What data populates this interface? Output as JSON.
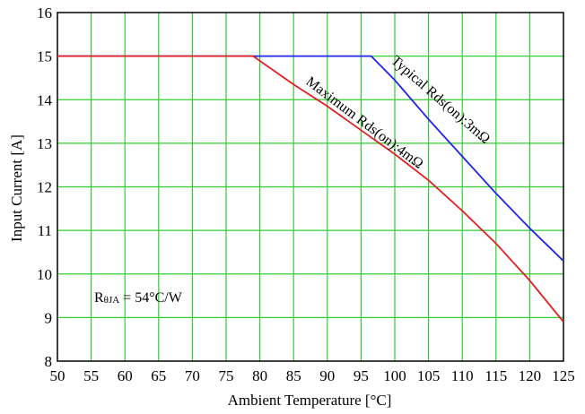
{
  "chart_data": {
    "type": "line",
    "xlabel": "Ambient Temperature [°C]",
    "ylabel": "Input Current [A]",
    "xlim": [
      50,
      125
    ],
    "ylim": [
      8,
      16
    ],
    "x_ticks": [
      "50",
      "55",
      "60",
      "65",
      "70",
      "75",
      "80",
      "85",
      "90",
      "95",
      "100",
      "105",
      "110",
      "115",
      "120",
      "125"
    ],
    "y_ticks": [
      "8",
      "9",
      "10",
      "11",
      "12",
      "13",
      "14",
      "15",
      "16"
    ],
    "grid": true,
    "grid_color": "#33cc33",
    "series": [
      {
        "name": "Typical Rds(on):3mΩ",
        "color": "#2222ee",
        "x": [
          50,
          96.5,
          100,
          105,
          110,
          115,
          120,
          125
        ],
        "y": [
          15,
          15,
          14.45,
          13.55,
          12.7,
          11.85,
          11.05,
          10.3
        ]
      },
      {
        "name": "Maximum Rds(on):4mΩ",
        "color": "#e02020",
        "x": [
          50,
          79,
          85,
          90,
          95,
          100,
          105,
          110,
          115,
          120,
          125
        ],
        "y": [
          15,
          15,
          14.35,
          13.85,
          13.3,
          12.75,
          12.15,
          11.45,
          10.7,
          9.85,
          8.9
        ]
      }
    ],
    "annotation_main": "R",
    "annotation_sub": "θJA",
    "annotation_rest": " = 54°C/W"
  }
}
